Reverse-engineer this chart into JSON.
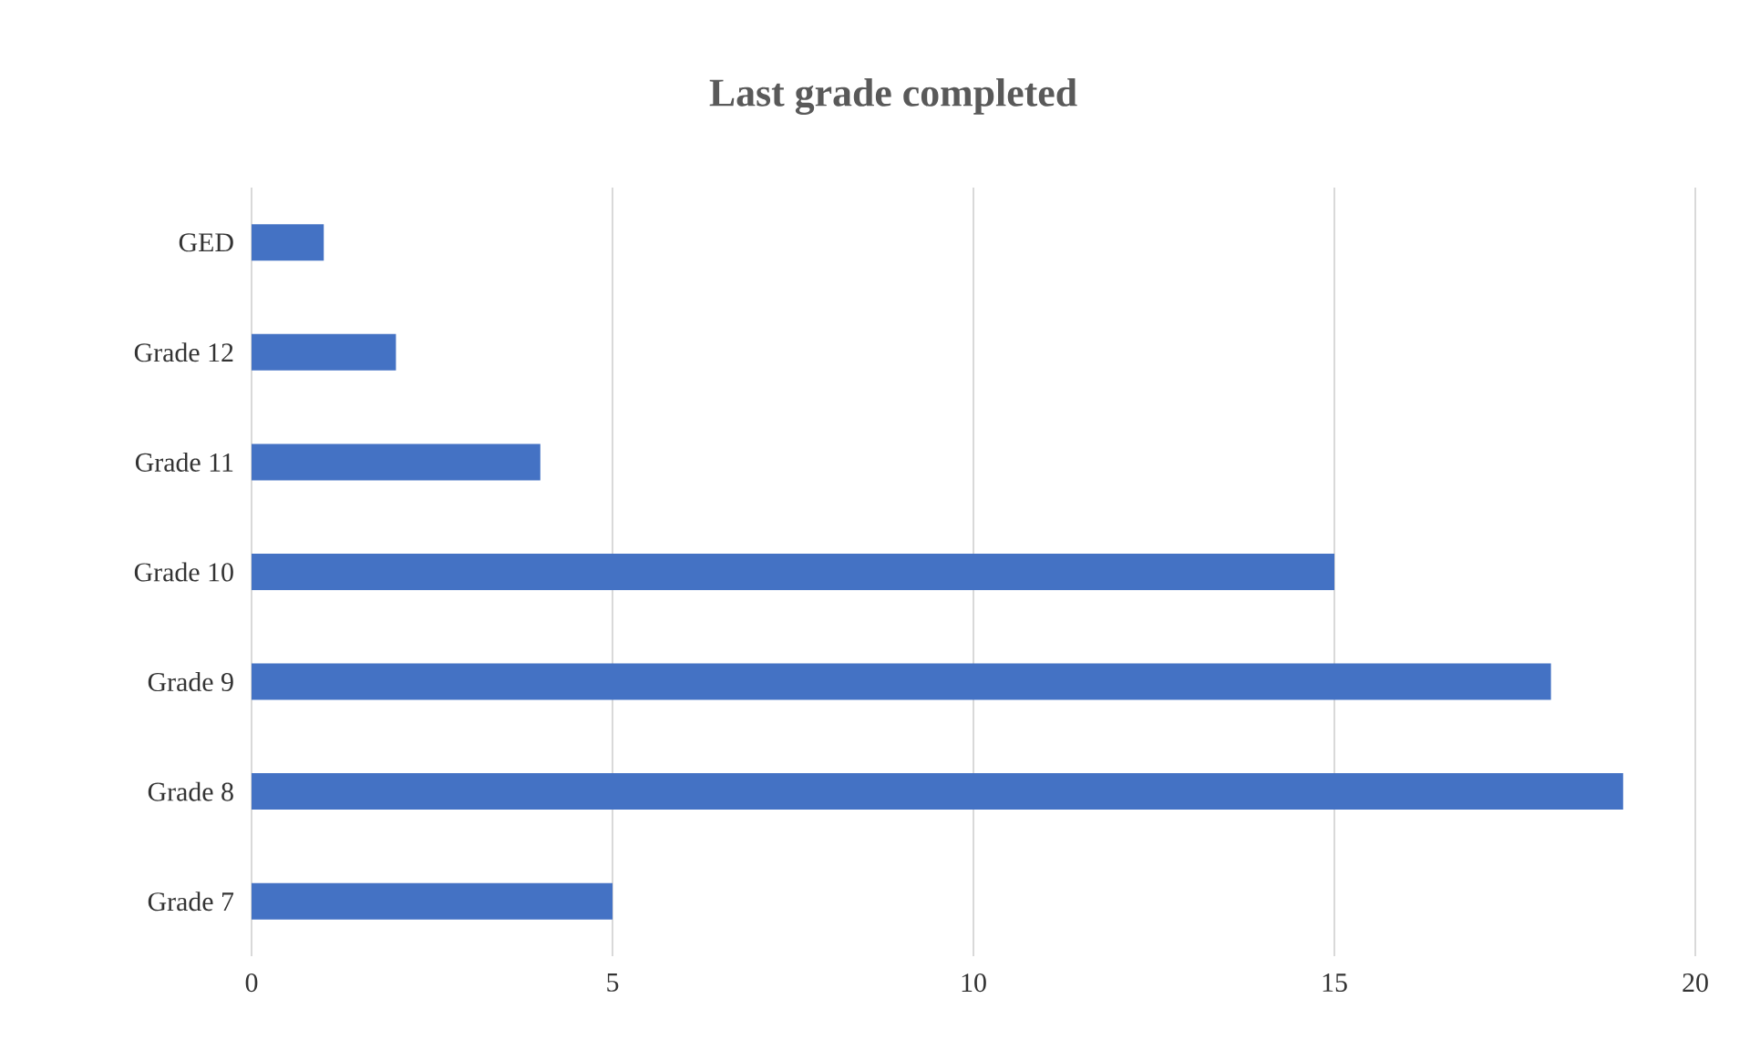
{
  "chart_data": {
    "type": "bar",
    "orientation": "horizontal",
    "title": "Last grade completed",
    "categories": [
      "GED",
      "Grade 12",
      "Grade 11",
      "Grade 10",
      "Grade 9",
      "Grade 8",
      "Grade 7"
    ],
    "values": [
      1,
      2,
      4,
      15,
      18,
      19,
      5
    ],
    "color": "#4472c4",
    "xlim": [
      0,
      20
    ],
    "xticks": [
      0,
      5,
      10,
      15,
      20
    ],
    "grid": "x"
  }
}
